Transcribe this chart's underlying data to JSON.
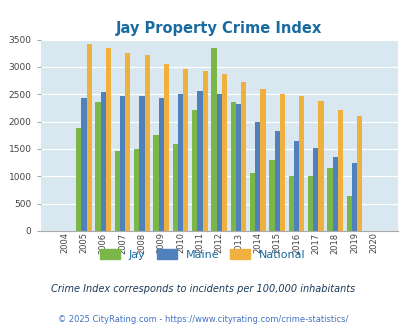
{
  "title": "Jay Property Crime Index",
  "years": [
    2004,
    2005,
    2006,
    2007,
    2008,
    2009,
    2010,
    2011,
    2012,
    2013,
    2014,
    2015,
    2016,
    2017,
    2018,
    2019,
    2020
  ],
  "jay": [
    0,
    1880,
    2360,
    1470,
    1500,
    1760,
    1600,
    2220,
    3350,
    2350,
    1060,
    1300,
    1000,
    1000,
    1160,
    640,
    0
  ],
  "maine": [
    0,
    2430,
    2540,
    2460,
    2470,
    2440,
    2500,
    2560,
    2510,
    2320,
    1990,
    1820,
    1640,
    1510,
    1350,
    1240,
    0
  ],
  "national": [
    0,
    3420,
    3340,
    3260,
    3210,
    3050,
    2960,
    2920,
    2870,
    2730,
    2600,
    2500,
    2470,
    2370,
    2210,
    2110,
    0
  ],
  "jay_color": "#7ab648",
  "maine_color": "#4f81bd",
  "national_color": "#f0b03f",
  "bg_color": "#d9e8f0",
  "ylim": [
    0,
    3500
  ],
  "yticks": [
    0,
    500,
    1000,
    1500,
    2000,
    2500,
    3000,
    3500
  ],
  "footer1": "Crime Index corresponds to incidents per 100,000 inhabitants",
  "footer2": "© 2025 CityRating.com - https://www.cityrating.com/crime-statistics/",
  "title_color": "#1a6ba0",
  "footer1_color": "#1a3a5c",
  "footer2_color": "#4472c4",
  "legend_labels": [
    "Jay",
    "Maine",
    "National"
  ],
  "legend_color": "#1a6ba0"
}
